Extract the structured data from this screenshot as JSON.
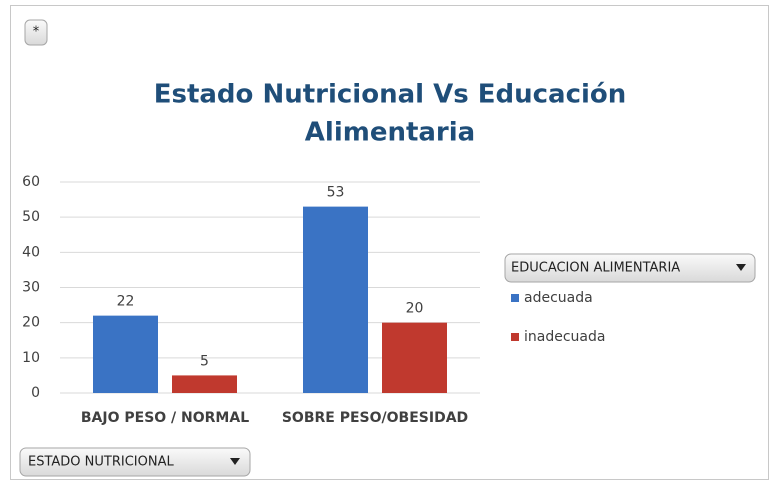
{
  "chart_data": {
    "type": "bar",
    "title": [
      "Estado Nutricional  Vs Educación",
      "Alimentaria"
    ],
    "categories": [
      "BAJO PESO / NORMAL",
      "SOBRE PESO/OBESIDAD"
    ],
    "series": [
      {
        "name": "adecuada",
        "color": "#3a73c4",
        "values": [
          22,
          53
        ]
      },
      {
        "name": "inadecuada",
        "color": "#c0392e",
        "values": [
          5,
          20
        ]
      }
    ],
    "ylim": [
      0,
      60
    ],
    "yticks": [
      0,
      10,
      20,
      30,
      40,
      50,
      60
    ],
    "grid": true,
    "legend_position": "right",
    "buttons": {
      "top": "*",
      "legend": "EDUCACION ALIMENTARIA",
      "axis": "ESTADO NUTRICIONAL"
    }
  }
}
